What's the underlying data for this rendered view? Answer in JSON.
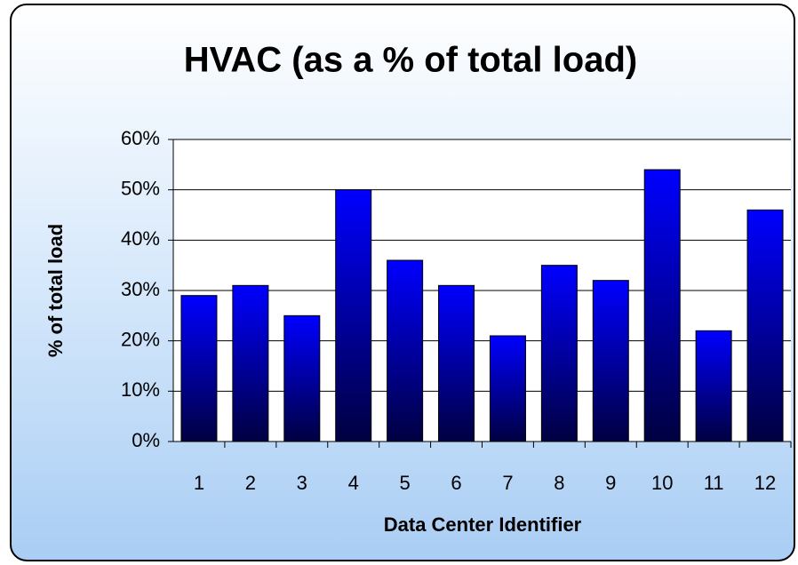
{
  "chart_data": {
    "type": "bar",
    "title": "HVAC (as a % of total load)",
    "x_label": "Data Center Identifier",
    "y_label": "% of total load",
    "categories": [
      "1",
      "2",
      "3",
      "4",
      "5",
      "6",
      "7",
      "8",
      "9",
      "10",
      "11",
      "12"
    ],
    "values": [
      29,
      31,
      25,
      50,
      36,
      31,
      21,
      35,
      32,
      54,
      22,
      46
    ],
    "color": "#0000ff",
    "ylim": [
      0,
      60
    ],
    "yticks": [
      {
        "value": 0,
        "label": "0%"
      },
      {
        "value": 10,
        "label": "10%"
      },
      {
        "value": 20,
        "label": "20%"
      },
      {
        "value": 30,
        "label": "30%"
      },
      {
        "value": 40,
        "label": "40%"
      },
      {
        "value": 50,
        "label": "50%"
      },
      {
        "value": 60,
        "label": "60%"
      }
    ],
    "grid": true
  }
}
